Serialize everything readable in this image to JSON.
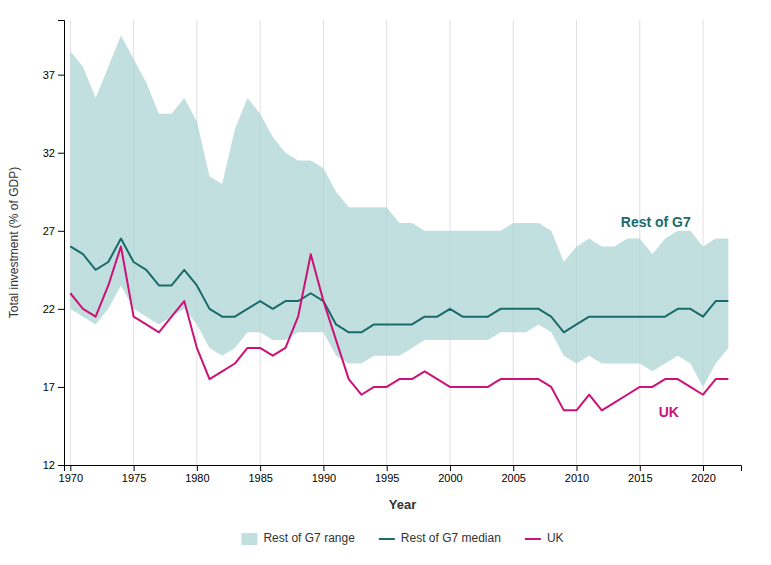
{
  "chart_data": {
    "type": "line",
    "xlabel": "Year",
    "ylabel": "Total investment (% of GDP)",
    "x": [
      1970,
      1971,
      1972,
      1973,
      1974,
      1975,
      1976,
      1977,
      1978,
      1979,
      1980,
      1981,
      1982,
      1983,
      1984,
      1985,
      1986,
      1987,
      1988,
      1989,
      1990,
      1991,
      1992,
      1993,
      1994,
      1995,
      1996,
      1997,
      1998,
      1999,
      2000,
      2001,
      2002,
      2003,
      2004,
      2005,
      2006,
      2007,
      2008,
      2009,
      2010,
      2011,
      2012,
      2013,
      2014,
      2015,
      2016,
      2017,
      2018,
      2019,
      2020,
      2021,
      2022
    ],
    "series": [
      {
        "name": "Rest of G7 range",
        "type": "area",
        "color": "#aed4d4",
        "lower": [
          22.0,
          21.5,
          21.0,
          22.0,
          23.5,
          22.0,
          21.5,
          21.0,
          21.5,
          22.0,
          21.0,
          19.5,
          19.0,
          19.5,
          20.5,
          20.5,
          20.0,
          20.0,
          20.5,
          20.5,
          20.5,
          19.0,
          18.5,
          18.5,
          19.0,
          19.0,
          19.0,
          19.5,
          20.0,
          20.0,
          20.0,
          20.0,
          20.0,
          20.0,
          20.5,
          20.5,
          20.5,
          21.0,
          20.5,
          19.0,
          18.5,
          19.0,
          18.5,
          18.5,
          18.5,
          18.5,
          18.0,
          18.5,
          19.0,
          18.5,
          17.0,
          18.5,
          19.5
        ],
        "upper": [
          38.5,
          37.5,
          35.5,
          37.5,
          39.5,
          38.0,
          36.5,
          34.5,
          34.5,
          35.5,
          34.0,
          30.5,
          30.0,
          33.5,
          35.5,
          34.5,
          33.0,
          32.0,
          31.5,
          31.5,
          31.0,
          29.5,
          28.5,
          28.5,
          28.5,
          28.5,
          27.5,
          27.5,
          27.0,
          27.0,
          27.0,
          27.0,
          27.0,
          27.0,
          27.0,
          27.5,
          27.5,
          27.5,
          27.0,
          25.0,
          26.0,
          26.5,
          26.0,
          26.0,
          26.5,
          26.5,
          25.5,
          26.5,
          27.0,
          27.0,
          26.0,
          26.5,
          26.5
        ]
      },
      {
        "name": "Rest of G7 median",
        "type": "line",
        "color": "#1a6b6b",
        "values": [
          26.0,
          25.5,
          24.5,
          25.0,
          26.5,
          25.0,
          24.5,
          23.5,
          23.5,
          24.5,
          23.5,
          22.0,
          21.5,
          21.5,
          22.0,
          22.5,
          22.0,
          22.5,
          22.5,
          23.0,
          22.5,
          21.0,
          20.5,
          20.5,
          21.0,
          21.0,
          21.0,
          21.0,
          21.5,
          21.5,
          22.0,
          21.5,
          21.5,
          21.5,
          22.0,
          22.0,
          22.0,
          22.0,
          21.5,
          20.5,
          21.0,
          21.5,
          21.5,
          21.5,
          21.5,
          21.5,
          21.5,
          21.5,
          22.0,
          22.0,
          21.5,
          22.5,
          22.5
        ]
      },
      {
        "name": "UK",
        "type": "line",
        "color": "#cc1177",
        "values": [
          23.0,
          22.0,
          21.5,
          23.5,
          26.0,
          21.5,
          21.0,
          20.5,
          21.5,
          22.5,
          19.5,
          17.5,
          18.0,
          18.5,
          19.5,
          19.5,
          19.0,
          19.5,
          21.5,
          25.5,
          22.5,
          20.0,
          17.5,
          16.5,
          17.0,
          17.0,
          17.5,
          17.5,
          18.0,
          17.5,
          17.0,
          17.0,
          17.0,
          17.0,
          17.5,
          17.5,
          17.5,
          17.5,
          17.0,
          15.5,
          15.5,
          16.5,
          15.5,
          16.0,
          16.5,
          17.0,
          17.0,
          17.5,
          17.5,
          17.0,
          16.5,
          17.5,
          17.5
        ]
      }
    ],
    "xlim": [
      1969.5,
      2023
    ],
    "ylim": [
      12,
      40.5
    ],
    "xticks": [
      1970,
      1975,
      1980,
      1985,
      1990,
      1995,
      2000,
      2005,
      2010,
      2015,
      2020
    ],
    "yticks": [
      12,
      17,
      22,
      27,
      32,
      37
    ],
    "grid": "x",
    "legend": "bottom",
    "annotations": [
      {
        "text": "Rest of G7",
        "x": 2013.5,
        "y": 27.5,
        "color": "#1a6b6b"
      },
      {
        "text": "UK",
        "x": 2016.5,
        "y": 15.3,
        "color": "#cc1177"
      }
    ]
  }
}
